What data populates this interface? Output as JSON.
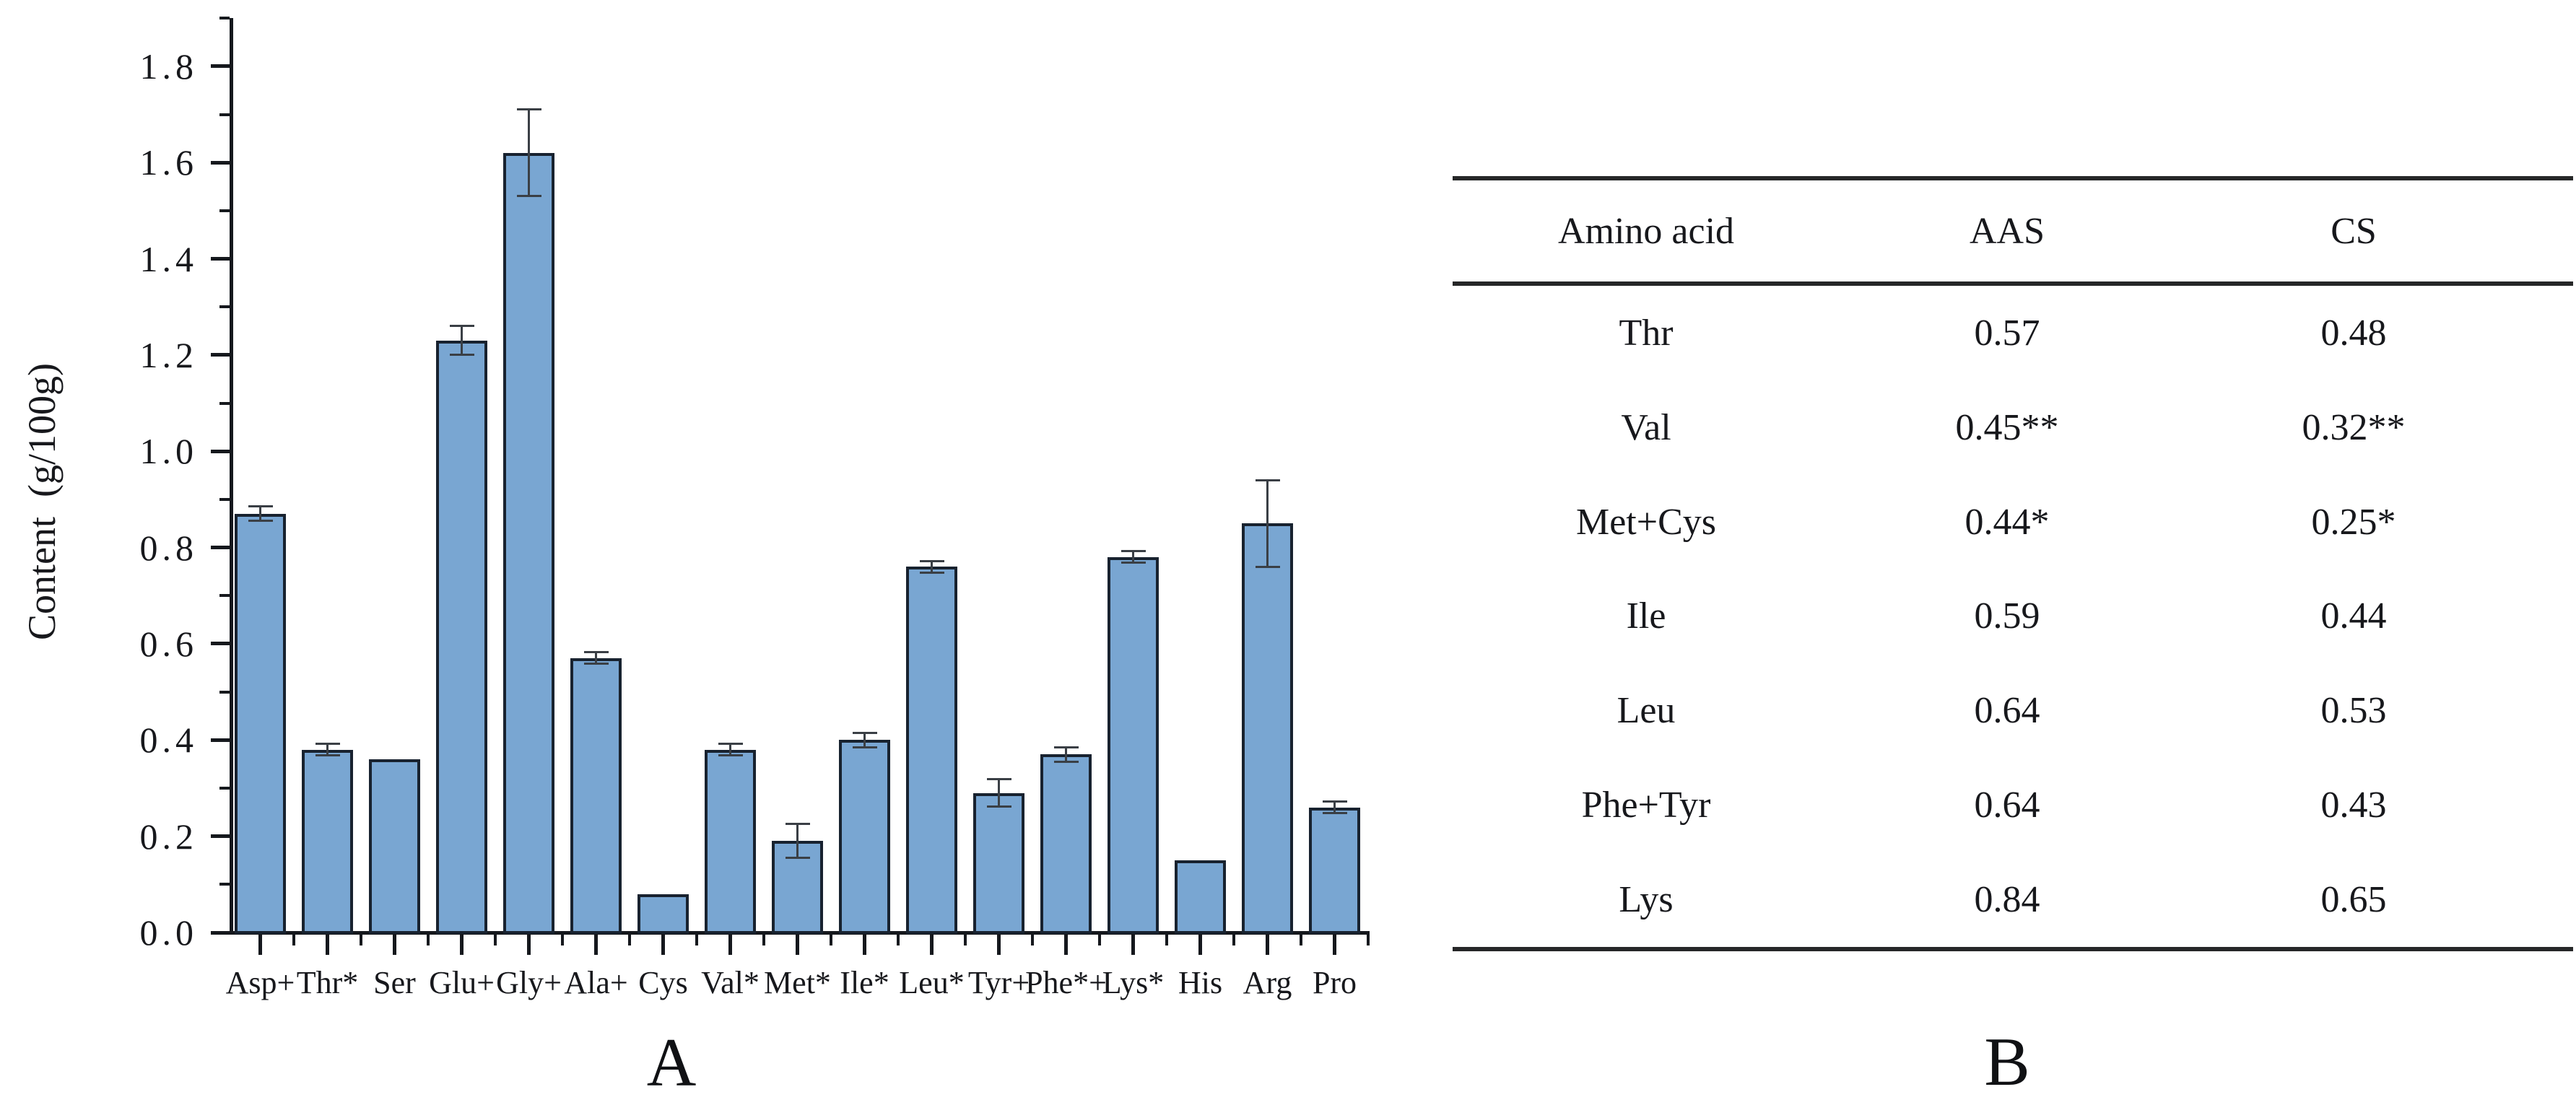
{
  "figure": {
    "panel_a_label": "A",
    "panel_b_label": "B"
  },
  "chart_data": {
    "type": "bar",
    "title": "",
    "xlabel": "",
    "ylabel": "Content  (g/100g)",
    "ylim": [
      0,
      1.9
    ],
    "grid": false,
    "legend": null,
    "yticks": [
      "0.0",
      "0.2",
      "0.4",
      "0.6",
      "0.8",
      "1.0",
      "1.2",
      "1.4",
      "1.6",
      "1.8"
    ],
    "categories": [
      "Asp+",
      "Thr*",
      "Ser",
      "Glu+",
      "Gly+",
      "Ala+",
      "Cys",
      "Val*",
      "Met*",
      "Ile*",
      "Leu*",
      "Tyr+",
      "Phe*+",
      "Lys*",
      "His",
      "Arg",
      "Pro"
    ],
    "values": [
      0.87,
      0.38,
      0.36,
      1.23,
      1.62,
      0.57,
      0.08,
      0.38,
      0.19,
      0.4,
      0.76,
      0.29,
      0.37,
      0.78,
      0.15,
      0.85,
      0.26
    ],
    "errors": [
      0.015,
      0.012,
      0,
      0.03,
      0.09,
      0.012,
      0,
      0.012,
      0.035,
      0.015,
      0.012,
      0.028,
      0.015,
      0.012,
      0,
      0.09,
      0.012
    ],
    "bar_fill": "#79a6d2",
    "bar_border": "#18222f",
    "error_color": "#3a3f45",
    "axis_color": "#15181d"
  },
  "table": {
    "headers": [
      "Amino acid",
      "AAS",
      "CS"
    ],
    "rows": [
      [
        "Thr",
        "0.57",
        "0.48"
      ],
      [
        "Val",
        "0.45**",
        "0.32**"
      ],
      [
        "Met+Cys",
        "0.44*",
        "0.25*"
      ],
      [
        "Ile",
        "0.59",
        "0.44"
      ],
      [
        "Leu",
        "0.64",
        "0.53"
      ],
      [
        "Phe+Tyr",
        "0.64",
        "0.43"
      ],
      [
        "Lys",
        "0.84",
        "0.65"
      ]
    ]
  }
}
